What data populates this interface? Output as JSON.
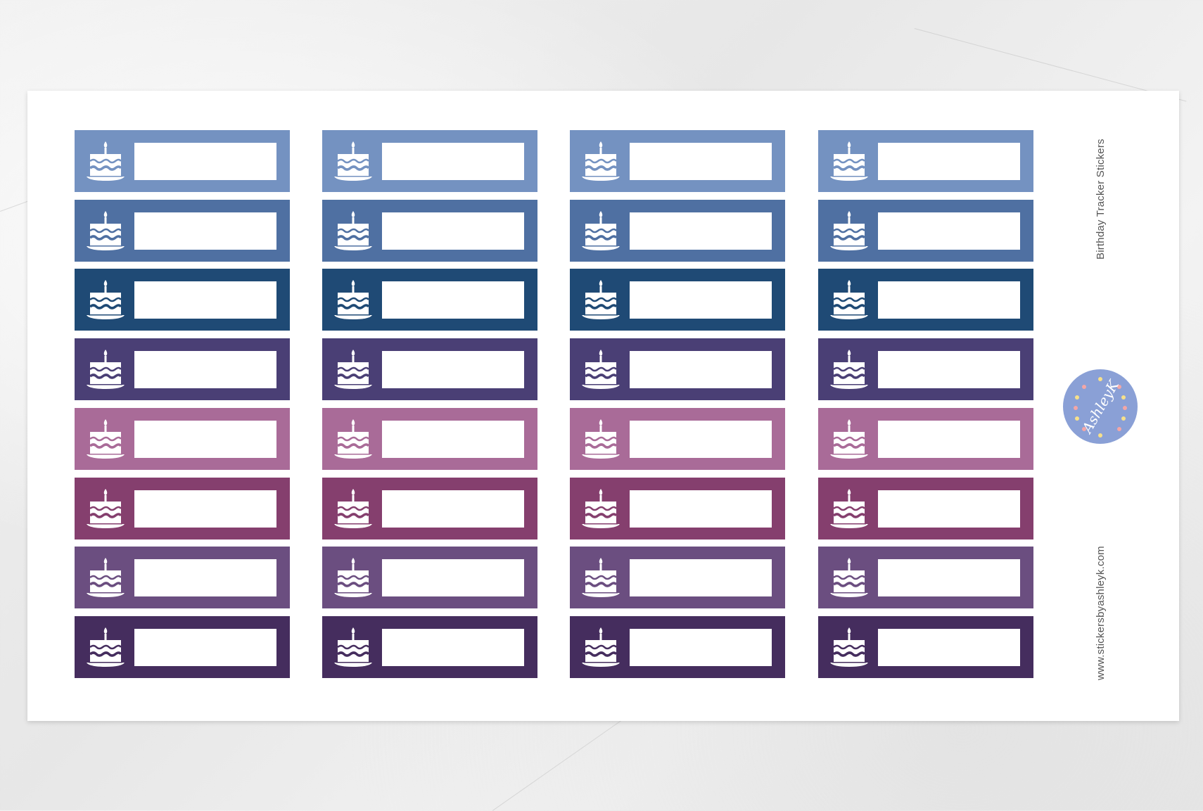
{
  "sheet": {
    "title": "Birthday Tracker Stickers",
    "website": "www.stickersbyashleyk.com",
    "logo_text": "by AshleyK",
    "columns": 4,
    "sticker_icon": "birthday-cake-icon",
    "row_colors": [
      "#7492c1",
      "#4f70a2",
      "#1f4a75",
      "#4a3f75",
      "#a96b98",
      "#853f6e",
      "#6b4e80",
      "#452d5e"
    ],
    "logo_color": "#8aa0d6"
  }
}
